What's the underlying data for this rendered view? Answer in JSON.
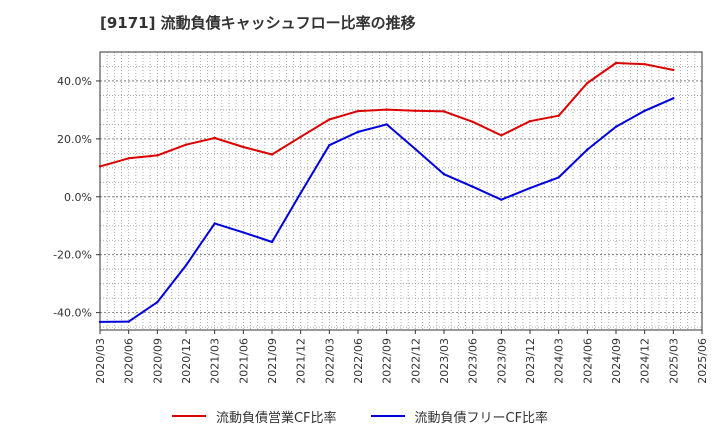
{
  "title": "[9171]  流動負債キャッシュフロー比率の推移",
  "chart_data": {
    "type": "line",
    "categories": [
      "2020/03",
      "2020/06",
      "2020/09",
      "2020/12",
      "2021/03",
      "2021/06",
      "2021/09",
      "2021/12",
      "2022/03",
      "2022/06",
      "2022/09",
      "2022/12",
      "2023/03",
      "2023/06",
      "2023/09",
      "2023/12",
      "2024/03",
      "2024/06",
      "2024/09",
      "2024/12",
      "2025/03",
      "2025/06"
    ],
    "ylim": [
      -46,
      50
    ],
    "yticks": [
      -40,
      -20,
      0,
      20,
      40
    ],
    "ytick_labels": [
      "-40.0%",
      "-20.0%",
      "0.0%",
      "20.0%",
      "40.0%"
    ],
    "grid": true,
    "legend_position": "bottom",
    "series": [
      {
        "name": "流動負債営業CF比率",
        "color": "#dd0000",
        "values": [
          10.5,
          13.3,
          14.3,
          18.0,
          20.3,
          17.2,
          14.6,
          20.7,
          26.7,
          29.6,
          30.1,
          29.7,
          29.5,
          25.9,
          21.2,
          26.1,
          28.0,
          39.3,
          46.2,
          45.8,
          43.8,
          null
        ]
      },
      {
        "name": "流動負債フリーCF比率",
        "color": "#0000dd",
        "values": [
          -43.2,
          -43.1,
          -36.4,
          -23.7,
          -9.2,
          -12.3,
          -15.6,
          1.3,
          17.8,
          22.4,
          25.0,
          16.5,
          7.8,
          3.5,
          -1.0,
          3.0,
          6.7,
          16.3,
          24.2,
          29.7,
          34.0,
          null
        ]
      }
    ]
  }
}
